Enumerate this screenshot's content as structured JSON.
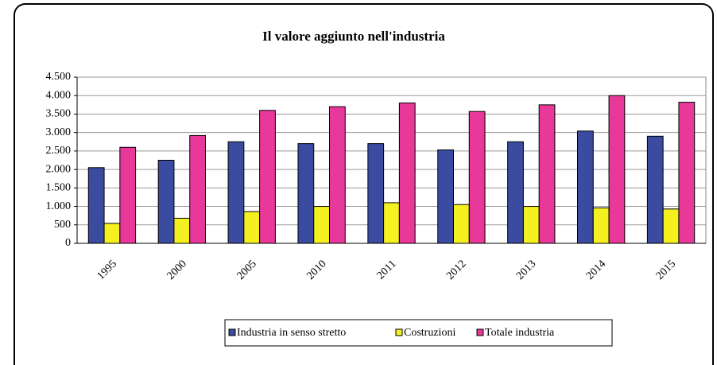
{
  "chart_data": {
    "type": "bar",
    "title": "Il valore aggiunto nell'industria",
    "categories": [
      "1995",
      "2000",
      "2005",
      "2010",
      "2011",
      "2012",
      "2013",
      "2014",
      "2015"
    ],
    "series": [
      {
        "name": "Industria in senso stretto",
        "color": "#3a4ba0",
        "values": [
          2050,
          2250,
          2750,
          2700,
          2700,
          2530,
          2750,
          3040,
          2900
        ]
      },
      {
        "name": "Costruzioni",
        "color": "#f5f020",
        "values": [
          540,
          680,
          860,
          1000,
          1100,
          1050,
          1000,
          960,
          930
        ]
      },
      {
        "name": "Totale industria",
        "color": "#e8399a",
        "values": [
          2600,
          2920,
          3600,
          3700,
          3800,
          3570,
          3750,
          4000,
          3820
        ]
      }
    ],
    "ylim": [
      0,
      4500
    ],
    "yticks": [
      0,
      500,
      {
        "value": 1000,
        "label": "1.000"
      },
      {
        "value": 1500,
        "label": "1.500"
      },
      {
        "value": 2000,
        "label": "2.000"
      },
      {
        "value": 2500,
        "label": "2.500"
      },
      {
        "value": 3000,
        "label": "3.000"
      },
      {
        "value": 3500,
        "label": "3.500"
      },
      {
        "value": 4000,
        "label": "4.000"
      },
      {
        "value": 4500,
        "label": "4.500"
      }
    ],
    "grid": true,
    "legend": "bottom"
  }
}
